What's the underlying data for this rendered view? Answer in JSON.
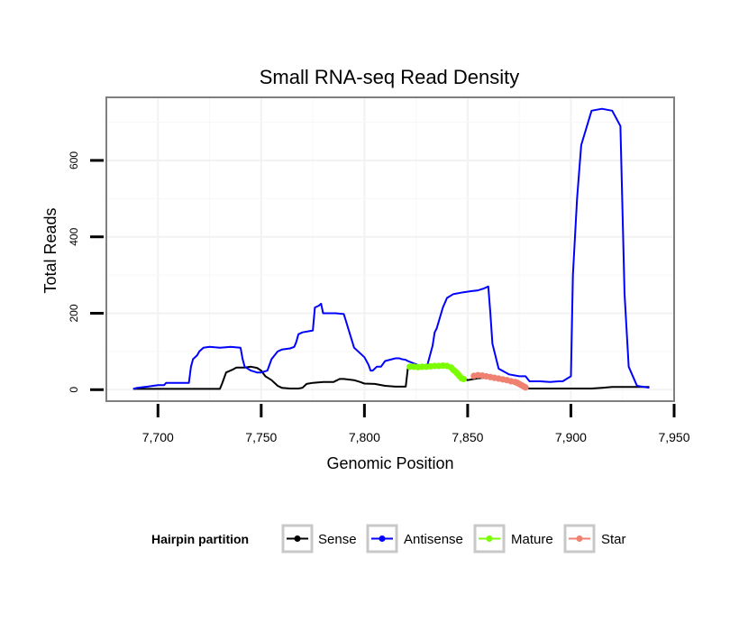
{
  "chart_data": {
    "type": "line",
    "title": "Small RNA-seq Read Density",
    "xlabel": "Genomic Position",
    "ylabel": "Total Reads",
    "xlim": [
      7675,
      7950
    ],
    "ylim": [
      -30,
      765
    ],
    "x_ticks": [
      7700,
      7750,
      7800,
      7850,
      7900,
      7950
    ],
    "x_tick_labels": [
      "7,700",
      "7,750",
      "7,800",
      "7,850",
      "7,900",
      "7,950"
    ],
    "y_ticks": [
      0,
      200,
      400,
      600
    ],
    "y_tick_labels": [
      "0",
      "200",
      "400",
      "600"
    ],
    "grid": true,
    "legend": {
      "title": "Hairpin partition",
      "position": "bottom",
      "entries": [
        "Sense",
        "Antisense",
        "Mature",
        "Star"
      ]
    },
    "series": [
      {
        "name": "Sense",
        "color": "#000000",
        "style": "line",
        "x": [
          7688,
          7700,
          7715,
          7730,
          7731,
          7733,
          7736,
          7738,
          7742,
          7745,
          7748,
          7750,
          7752,
          7755,
          7758,
          7760,
          7764,
          7768,
          7770,
          7772,
          7775,
          7780,
          7785,
          7788,
          7790,
          7795,
          7798,
          7800,
          7805,
          7810,
          7815,
          7818,
          7820,
          7821,
          7825,
          7830,
          7835,
          7840,
          7845,
          7848,
          7850,
          7855,
          7860,
          7865,
          7870,
          7875,
          7878,
          7880,
          7890,
          7900,
          7910,
          7915,
          7920,
          7930,
          7938
        ],
        "values": [
          2,
          2,
          2,
          2,
          15,
          45,
          52,
          58,
          58,
          60,
          57,
          50,
          35,
          25,
          10,
          5,
          3,
          3,
          5,
          15,
          18,
          20,
          20,
          28,
          28,
          25,
          20,
          16,
          15,
          10,
          8,
          8,
          8,
          55,
          58,
          60,
          62,
          60,
          45,
          30,
          25,
          30,
          32,
          30,
          25,
          15,
          5,
          3,
          3,
          3,
          3,
          5,
          7,
          7,
          7
        ]
      },
      {
        "name": "Antisense",
        "color": "#0000ff",
        "style": "line",
        "x": [
          7688,
          7690,
          7695,
          7700,
          7703,
          7704,
          7707,
          7710,
          7715,
          7716,
          7717,
          7719,
          7720,
          7722,
          7725,
          7730,
          7735,
          7740,
          7741,
          7742,
          7745,
          7748,
          7750,
          7753,
          7755,
          7758,
          7760,
          7764,
          7766,
          7767,
          7768,
          7770,
          7775,
          7776,
          7778,
          7779,
          7780,
          7783,
          7786,
          7790,
          7795,
          7800,
          7802,
          7803,
          7804,
          7806,
          7808,
          7810,
          7815,
          7817,
          7818,
          7820,
          7821,
          7828,
          7830,
          7833,
          7834,
          7835,
          7838,
          7840,
          7843,
          7848,
          7852,
          7855,
          7858,
          7860,
          7861,
          7862,
          7865,
          7870,
          7875,
          7878,
          7880,
          7885,
          7890,
          7894,
          7896,
          7900,
          7901,
          7903,
          7905,
          7910,
          7915,
          7920,
          7924,
          7926,
          7928,
          7932,
          7938
        ],
        "values": [
          2,
          5,
          8,
          12,
          12,
          18,
          18,
          18,
          18,
          60,
          80,
          90,
          100,
          110,
          112,
          110,
          112,
          110,
          80,
          60,
          50,
          45,
          45,
          50,
          80,
          100,
          105,
          108,
          112,
          125,
          145,
          150,
          155,
          215,
          220,
          225,
          200,
          200,
          200,
          198,
          110,
          85,
          65,
          50,
          50,
          60,
          60,
          75,
          82,
          82,
          80,
          78,
          75,
          60,
          55,
          115,
          150,
          160,
          215,
          240,
          250,
          255,
          258,
          260,
          265,
          270,
          200,
          120,
          55,
          40,
          35,
          35,
          22,
          22,
          20,
          22,
          22,
          35,
          300,
          500,
          640,
          730,
          735,
          730,
          690,
          250,
          60,
          10,
          5
        ]
      },
      {
        "name": "Mature",
        "color": "#7cfc00",
        "style": "markers",
        "x": [
          7822,
          7824,
          7826,
          7828,
          7830,
          7832,
          7834,
          7836,
          7838,
          7840,
          7842,
          7843,
          7844,
          7845,
          7846,
          7847,
          7848
        ],
        "values": [
          60,
          60,
          59,
          60,
          60,
          61,
          62,
          62,
          63,
          62,
          58,
          52,
          48,
          42,
          36,
          30,
          28
        ]
      },
      {
        "name": "Star",
        "color": "#f08070",
        "style": "markers",
        "x": [
          7853,
          7855,
          7857,
          7859,
          7861,
          7863,
          7865,
          7867,
          7869,
          7871,
          7873,
          7874,
          7875,
          7876,
          7877,
          7878
        ],
        "values": [
          36,
          38,
          37,
          35,
          33,
          31,
          29,
          27,
          25,
          22,
          20,
          18,
          15,
          12,
          9,
          6
        ]
      }
    ]
  }
}
